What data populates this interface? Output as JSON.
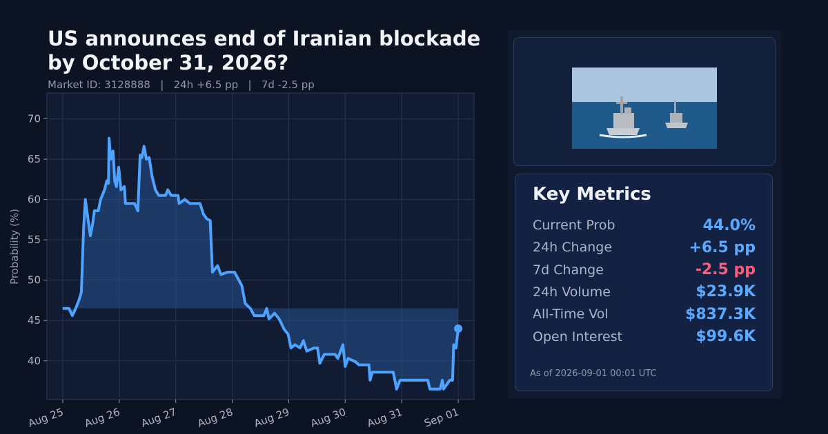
{
  "chart_data": {
    "type": "line",
    "title": "US announces end of Iranian blockade by October 31, 2026?",
    "subtitle": "Market ID: 3128888   |   24h +6.5 pp   |   7d -2.5 pp",
    "y_label": "Probability (%)",
    "color": "#4da3ff",
    "x": [
      0,
      0.11,
      0.17,
      0.23,
      0.29,
      0.33,
      0.37,
      0.4,
      0.45,
      0.49,
      0.53,
      0.56,
      0.63,
      0.67,
      0.74,
      0.78,
      0.81,
      0.82,
      0.85,
      0.89,
      0.92,
      0.95,
      0.99,
      1.03,
      1.09,
      1.11,
      1.27,
      1.33,
      1.37,
      1.4,
      1.44,
      1.48,
      1.53,
      1.58,
      1.64,
      1.7,
      1.82,
      1.86,
      1.92,
      2.04,
      2.06,
      2.16,
      2.25,
      2.43,
      2.49,
      2.55,
      2.61,
      2.65,
      2.74,
      2.8,
      2.92,
      3.04,
      3.11,
      3.17,
      3.23,
      3.32,
      3.39,
      3.56,
      3.61,
      3.65,
      3.75,
      3.83,
      3.92,
      3.99,
      4.04,
      4.11,
      4.2,
      4.26,
      4.32,
      4.45,
      4.51,
      4.55,
      4.63,
      4.82,
      4.87,
      4.96,
      5.0,
      5.05,
      5.18,
      5.24,
      5.42,
      5.44,
      5.48,
      5.85,
      5.91,
      5.97,
      6.46,
      6.5,
      6.68,
      6.72,
      6.74,
      6.85,
      6.9,
      6.92,
      6.96,
      7.0
    ],
    "values": [
      46.5,
      46.5,
      45.6,
      46.5,
      47.6,
      48.5,
      56.5,
      60,
      57.4,
      55.5,
      57,
      58.6,
      58.6,
      60,
      61.2,
      62.3,
      62,
      67.6,
      65,
      66,
      62.3,
      61.6,
      64,
      61.2,
      61.6,
      59.5,
      59.5,
      58.6,
      65.5,
      65.2,
      66.6,
      65,
      65.2,
      62.9,
      61.2,
      60.5,
      60.5,
      61.2,
      60.5,
      60.5,
      59.5,
      60,
      59.5,
      59.5,
      58.2,
      57.6,
      57.4,
      51,
      51.8,
      50.7,
      51,
      51,
      50.1,
      49.3,
      47.1,
      46.5,
      45.6,
      45.6,
      46.5,
      45.2,
      45.9,
      45.2,
      43.9,
      43.3,
      41.6,
      42,
      41.6,
      42.5,
      41.2,
      41.6,
      41.6,
      39.7,
      40.8,
      40.8,
      40.3,
      42,
      39.3,
      40.3,
      39.9,
      39.5,
      39.5,
      37.6,
      38.6,
      38.6,
      36.5,
      37.6,
      37.6,
      36.5,
      36.5,
      37.6,
      36.5,
      37.6,
      37.6,
      42,
      41.6,
      44.0
    ],
    "xlim": [
      -0.28,
      7.28
    ],
    "ylim": [
      35.2,
      73.2
    ],
    "xticks": [
      {
        "value": 0,
        "label": "Aug 25"
      },
      {
        "value": 1,
        "label": "Aug 26"
      },
      {
        "value": 2,
        "label": "Aug 27"
      },
      {
        "value": 3,
        "label": "Aug 28"
      },
      {
        "value": 4,
        "label": "Aug 29"
      },
      {
        "value": 5,
        "label": "Aug 30"
      },
      {
        "value": 6,
        "label": "Aug 31"
      },
      {
        "value": 7,
        "label": "Sep 01"
      }
    ],
    "yticks": [
      40,
      45,
      50,
      55,
      60,
      65,
      70
    ],
    "grid": true
  },
  "panel": {
    "title": "Key Metrics",
    "metrics": [
      {
        "label": "Current Prob",
        "value": "44.0%",
        "color": "#5aa9ff"
      },
      {
        "label": "24h Change",
        "value": "+6.5 pp",
        "color": "#5aa9ff"
      },
      {
        "label": "7d Change",
        "value": "-2.5 pp",
        "color": "#ff5c7a"
      },
      {
        "label": "24h Volume",
        "value": "$23.9K",
        "color": "#5aa9ff"
      },
      {
        "label": "All-Time Vol",
        "value": "$837.3K",
        "color": "#5aa9ff"
      },
      {
        "label": "Open Interest",
        "value": "$99.6K",
        "color": "#5aa9ff"
      }
    ],
    "footnote": "As of 2026-09-01 00:01 UTC"
  }
}
